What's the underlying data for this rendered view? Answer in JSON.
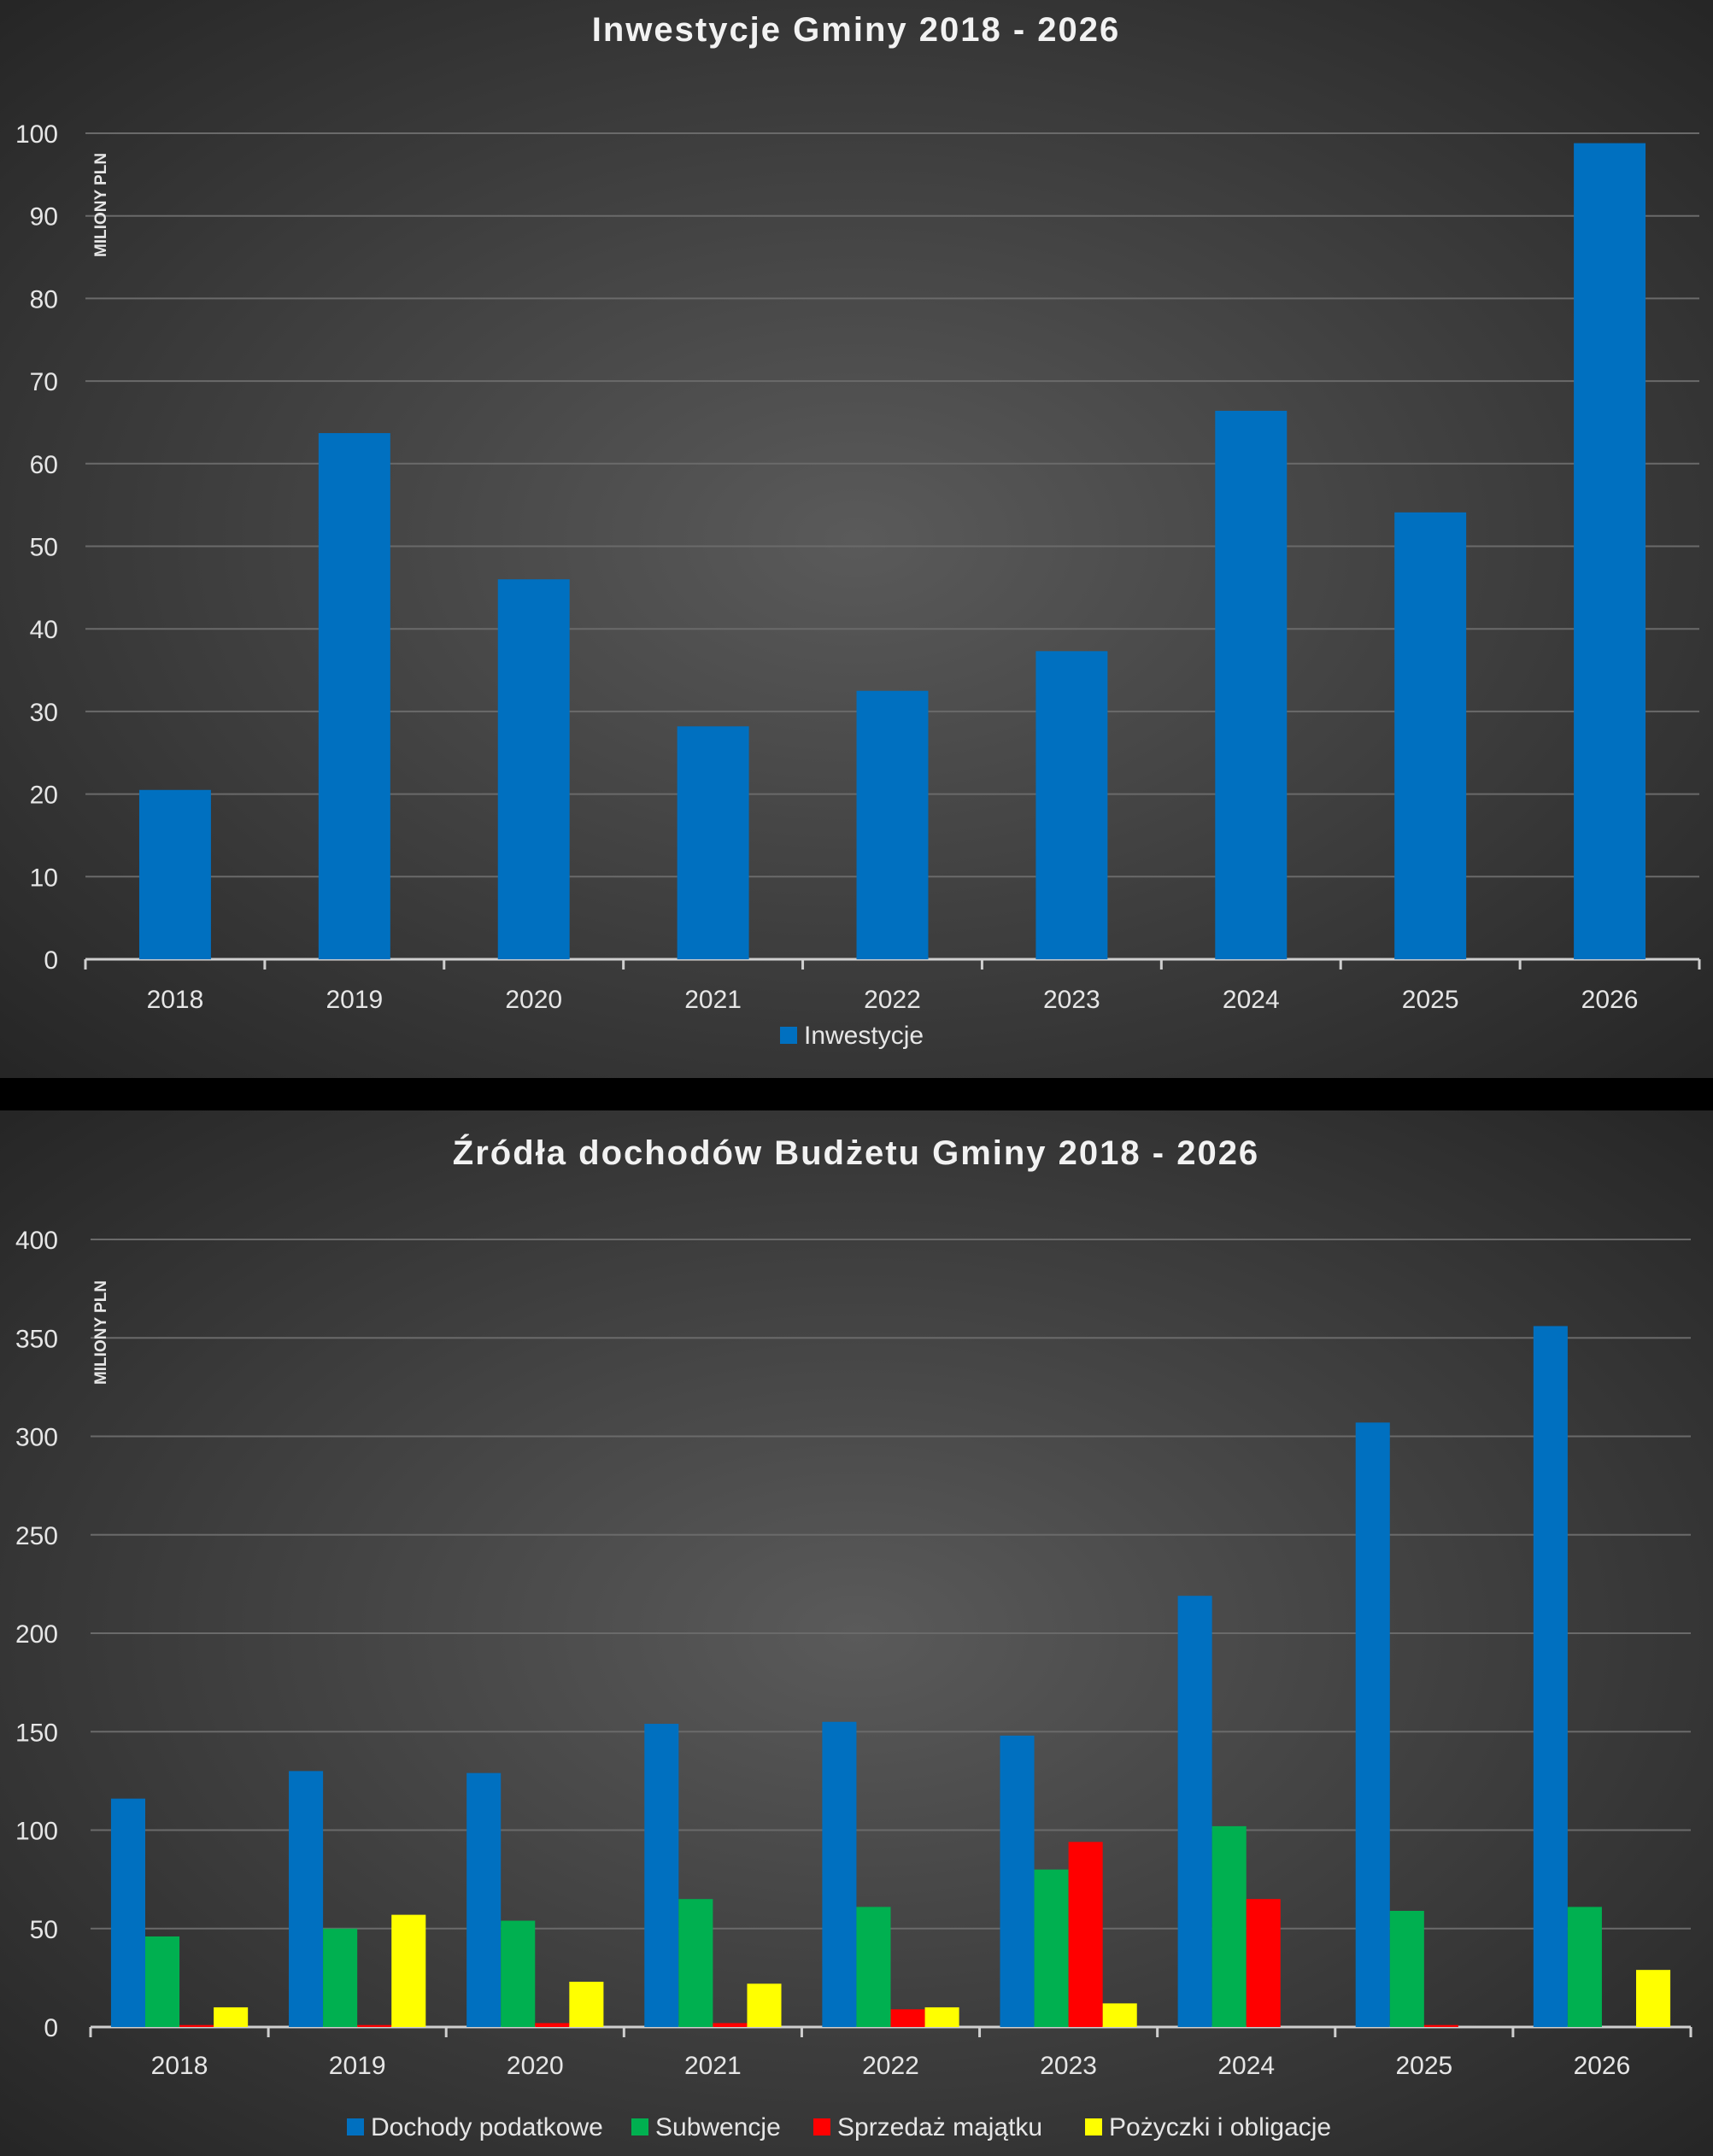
{
  "chart_data": [
    {
      "type": "bar",
      "title": "Inwestycje Gminy 2018 - 2026",
      "xlabel": "",
      "ylabel": "MILIONY PLN",
      "ylim": [
        0,
        100
      ],
      "yticks": [
        0,
        10,
        20,
        30,
        40,
        50,
        60,
        70,
        80,
        90,
        100
      ],
      "categories": [
        "2018",
        "2019",
        "2020",
        "2021",
        "2022",
        "2023",
        "2024",
        "2025",
        "2026"
      ],
      "series": [
        {
          "name": "Inwestycje",
          "color": "#0070c0",
          "values": [
            20.5,
            63.7,
            46,
            28.2,
            32.5,
            37.3,
            66.4,
            54.1,
            98.8
          ]
        }
      ],
      "grid": true,
      "legend": "bottom"
    },
    {
      "type": "bar",
      "title": "Źródła dochodów Budżetu Gminy 2018 - 2026",
      "xlabel": "",
      "ylabel": "MILIONY PLN",
      "ylim": [
        0,
        400
      ],
      "yticks": [
        0,
        50,
        100,
        150,
        200,
        250,
        300,
        350,
        400
      ],
      "categories": [
        "2018",
        "2019",
        "2020",
        "2021",
        "2022",
        "2023",
        "2024",
        "2025",
        "2026"
      ],
      "series": [
        {
          "name": "Dochody podatkowe",
          "color": "#0070c0",
          "values": [
            116,
            130,
            129,
            154,
            155,
            148,
            219,
            307,
            356
          ]
        },
        {
          "name": "Subwencje",
          "color": "#00b050",
          "values": [
            46,
            50,
            54,
            65,
            61,
            80,
            102,
            59,
            61
          ]
        },
        {
          "name": "Sprzedaż majątku",
          "color": "#ff0000",
          "values": [
            1,
            1,
            2,
            2,
            9,
            94,
            65,
            1,
            0
          ]
        },
        {
          "name": "Pożyczki i obligacje",
          "color": "#ffff00",
          "values": [
            10,
            57,
            23,
            22,
            10,
            12,
            0,
            0,
            29
          ]
        }
      ],
      "grid": true,
      "legend": "bottom"
    }
  ]
}
